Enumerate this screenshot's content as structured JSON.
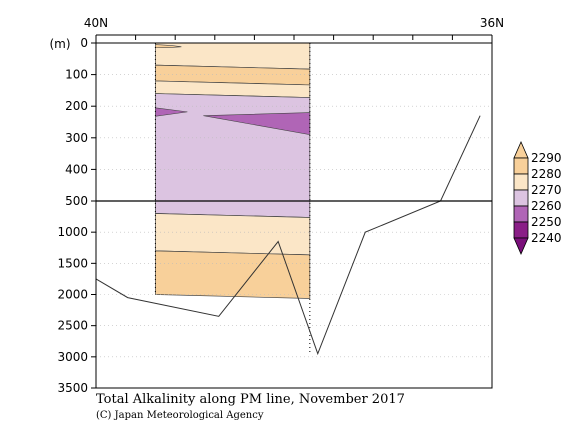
{
  "chart_data": {
    "type": "contour-section",
    "title": "Total Alkalinity along PM line, November 2017",
    "credit": "(C) Japan Meteorological Agency",
    "ylabel": "(m)",
    "x_ticks": [
      "40N",
      "36N"
    ],
    "y_ticks_upper": [
      0,
      100,
      200,
      300,
      400,
      500
    ],
    "y_ticks_lower": [
      1000,
      1500,
      2000,
      2500,
      3000,
      3500
    ],
    "y_break": 500,
    "colorbar": {
      "levels": [
        2240,
        2250,
        2260,
        2270,
        2280,
        2290
      ],
      "colors": [
        "#8a1e87",
        "#b065b6",
        "#dcc4e1",
        "#fbe6c7",
        "#f8d09a"
      ]
    },
    "data_region": {
      "x_start": 0.15,
      "x_end": 0.54,
      "depth_max": 2000
    },
    "bands": [
      {
        "name": "upper",
        "fill": "#fbe6c7",
        "from": 0,
        "to": 70,
        "level": "2270-2280"
      },
      {
        "name": "orange-1",
        "fill": "#f8d09a",
        "from": 70,
        "to": 120,
        "level": "2280-2290"
      },
      {
        "name": "cream-2",
        "fill": "#fbe6c7",
        "from": 120,
        "to": 160,
        "level": "2270-2280"
      },
      {
        "name": "lilac",
        "fill": "#dcc4e1",
        "from": 160,
        "to": 700,
        "level": "2260-2270"
      },
      {
        "name": "cream-3",
        "fill": "#fbe6c7",
        "from": 700,
        "to": 1300,
        "level": "2270-2280"
      },
      {
        "name": "orange-deep",
        "fill": "#f8d09a",
        "from": 1300,
        "to": 2000,
        "level": "2280-2290"
      }
    ],
    "bottom_topography": {
      "x": [
        0.0,
        0.08,
        0.3,
        0.43,
        0.54,
        0.66,
        0.86,
        1.0
      ],
      "depth": [
        1750,
        2050,
        2350,
        1150,
        2950,
        1000,
        500,
        230
      ]
    }
  }
}
